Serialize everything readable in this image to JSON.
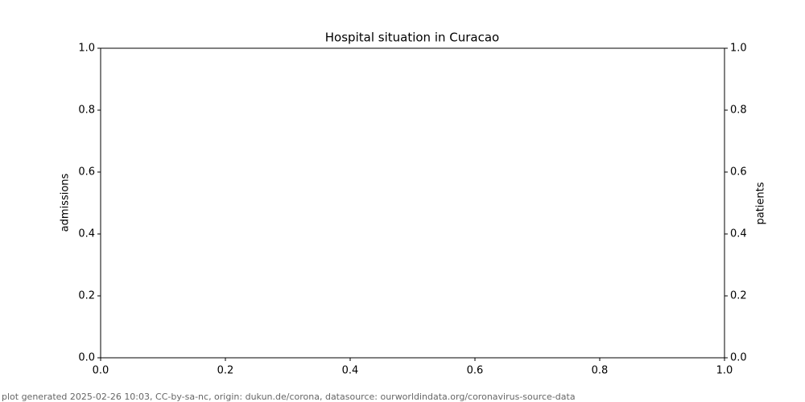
{
  "chart_data": {
    "type": "line",
    "title": "Hospital situation in Curacao",
    "ylabel": "admissions",
    "y2label": "patients",
    "series": [],
    "xlim": [
      0,
      1
    ],
    "xticks": [
      {
        "value": 0,
        "label": "0.0"
      },
      0.2,
      0.4,
      0.6,
      0.8,
      {
        "value": 1,
        "label": "1.0"
      }
    ],
    "ylim": [
      0,
      1
    ],
    "yticks": [
      {
        "value": 0,
        "label": "0.0"
      },
      0.2,
      0.4,
      0.6,
      0.8,
      {
        "value": 1,
        "label": "1.0"
      }
    ],
    "y2lim": [
      0,
      1
    ],
    "y2ticks": [
      {
        "value": 0,
        "label": "0.0"
      },
      0.2,
      0.4,
      0.6,
      0.8,
      {
        "value": 1,
        "label": "1.0"
      }
    ],
    "grid": false
  },
  "footer": "plot generated 2025-02-26 10:03, CC-by-sa-nc, origin: dukun.de/corona, datasource: ourworldindata.org/coronavirus-source-data"
}
